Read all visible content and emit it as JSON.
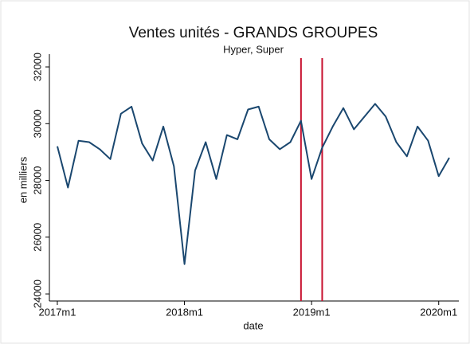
{
  "chart_data": {
    "type": "line",
    "title": "Ventes unités - GRANDS GROUPES",
    "subtitle": "Hyper, Super",
    "x_label": "date",
    "y_label": "en milliers",
    "x": [
      "2017m1",
      "2017m2",
      "2017m3",
      "2017m4",
      "2017m5",
      "2017m6",
      "2017m7",
      "2017m8",
      "2017m9",
      "2017m10",
      "2017m11",
      "2017m12",
      "2018m1",
      "2018m2",
      "2018m3",
      "2018m4",
      "2018m5",
      "2018m6",
      "2018m7",
      "2018m8",
      "2018m9",
      "2018m10",
      "2018m11",
      "2018m12",
      "2019m1",
      "2019m2",
      "2019m3",
      "2019m4",
      "2019m5",
      "2019m6",
      "2019m7",
      "2019m8",
      "2019m9",
      "2019m10",
      "2019m11",
      "2019m12",
      "2020m1",
      "2020m2"
    ],
    "series": [
      {
        "name": "Ventes",
        "color": "#1a476f",
        "values": [
          29200,
          27750,
          29400,
          29350,
          29100,
          28750,
          30350,
          30600,
          29300,
          28700,
          29900,
          28500,
          25050,
          28350,
          29350,
          28050,
          29600,
          29450,
          30500,
          30600,
          29450,
          29100,
          29350,
          30100,
          28050,
          29150,
          29900,
          30550,
          29800,
          30250,
          30700,
          30250,
          29350,
          28850,
          29900,
          29400,
          28150,
          28800
        ]
      }
    ],
    "xticks": [
      "2017m1",
      "2018m1",
      "2019m1",
      "2020m1"
    ],
    "ylim": [
      23750,
      32450
    ],
    "yticks": [
      24000,
      26000,
      28000,
      30000,
      32000
    ],
    "vlines": [
      "2018m12",
      "2019m2"
    ],
    "vline_color": "#c8102e",
    "grid": false
  }
}
